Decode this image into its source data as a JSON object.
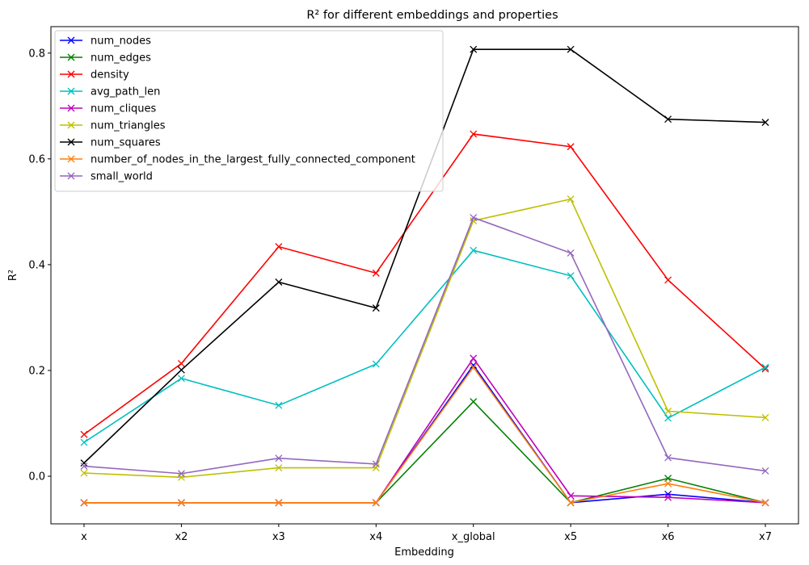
{
  "chart_data": {
    "type": "line",
    "title": "R² for different embeddings and properties",
    "xlabel": "Embedding",
    "ylabel": "R²",
    "categories": [
      "x",
      "x2",
      "x3",
      "x4",
      "x_global",
      "x5",
      "x6",
      "x7"
    ],
    "ylim": [
      -0.09,
      0.85
    ],
    "yticks": [
      0.0,
      0.2,
      0.4,
      0.6,
      0.8
    ],
    "ytick_labels": [
      "0.0",
      "0.2",
      "0.4",
      "0.6",
      "0.8"
    ],
    "grid": false,
    "legend_position": "top-left",
    "marker": "x",
    "series": [
      {
        "name": "num_nodes",
        "color": "#0000ff",
        "values": [
          -0.05,
          -0.05,
          -0.05,
          -0.05,
          0.21,
          -0.05,
          -0.034,
          -0.05
        ]
      },
      {
        "name": "num_edges",
        "color": "#008000",
        "values": [
          -0.05,
          -0.05,
          -0.05,
          -0.05,
          0.141,
          -0.05,
          -0.004,
          -0.05
        ]
      },
      {
        "name": "density",
        "color": "#ff0000",
        "values": [
          0.079,
          0.213,
          0.434,
          0.384,
          0.647,
          0.623,
          0.371,
          0.203
        ]
      },
      {
        "name": "avg_path_len",
        "color": "#00bfbf",
        "values": [
          0.064,
          0.185,
          0.134,
          0.212,
          0.427,
          0.379,
          0.11,
          0.206
        ]
      },
      {
        "name": "num_cliques",
        "color": "#bf00bf",
        "values": [
          -0.05,
          -0.05,
          -0.05,
          -0.05,
          0.223,
          -0.037,
          -0.04,
          -0.05
        ]
      },
      {
        "name": "num_triangles",
        "color": "#bfbf00",
        "values": [
          0.006,
          -0.002,
          0.016,
          0.016,
          0.483,
          0.524,
          0.123,
          0.111
        ]
      },
      {
        "name": "num_squares",
        "color": "#000000",
        "values": [
          0.025,
          0.201,
          0.367,
          0.318,
          0.807,
          0.807,
          0.675,
          0.669
        ]
      },
      {
        "name": "number_of_nodes_in_the_largest_fully_connected_component",
        "color": "#ff7f0e",
        "values": [
          -0.05,
          -0.05,
          -0.05,
          -0.05,
          0.206,
          -0.05,
          -0.014,
          -0.05
        ]
      },
      {
        "name": "small_world",
        "color": "#9467bd",
        "values": [
          0.019,
          0.005,
          0.034,
          0.023,
          0.489,
          0.422,
          0.035,
          0.01
        ]
      }
    ]
  }
}
